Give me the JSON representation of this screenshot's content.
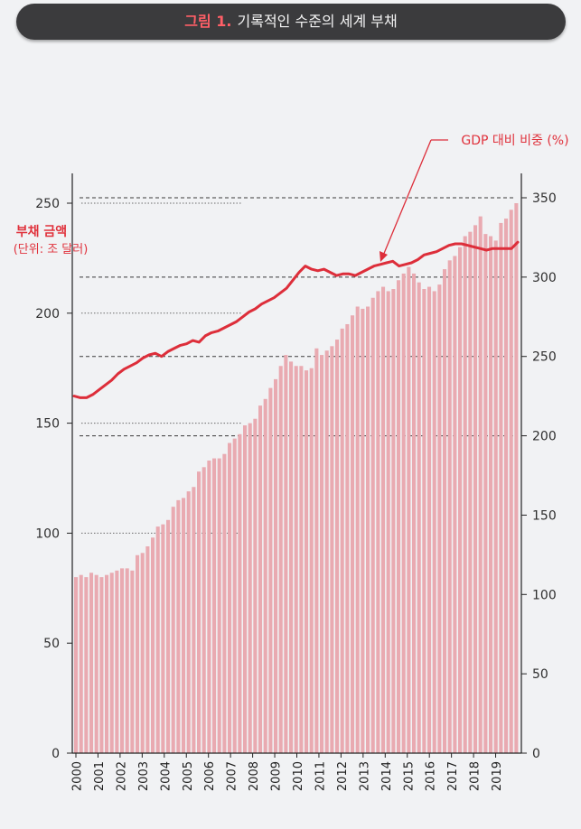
{
  "header": {
    "figure_number": "그림 1.",
    "title": "기록적인 수준의 세계 부채"
  },
  "chart_data": {
    "type": "bar",
    "title": "기록적인 수준의 세계 부채",
    "x_labels": [
      "2000",
      "2001",
      "2002",
      "2003",
      "2004",
      "2005",
      "2006",
      "2007",
      "2008",
      "2009",
      "2010",
      "2011",
      "2012",
      "2013",
      "2014",
      "2015",
      "2016",
      "2017",
      "2018",
      "2019"
    ],
    "left_axis": {
      "label": "부채 금액",
      "unit_label": "(단위: 조 달러)",
      "ticks": [
        0,
        50,
        100,
        150,
        200,
        250
      ],
      "range": [
        0,
        260
      ]
    },
    "right_axis": {
      "ticks": [
        0,
        50,
        100,
        150,
        200,
        250,
        300,
        350
      ],
      "range": [
        0,
        360
      ]
    },
    "series": [
      {
        "name": "부채 금액",
        "kind": "bar",
        "axis": "left",
        "color": "#e9aab1",
        "values": [
          80,
          81,
          80,
          82,
          81,
          80,
          81,
          82,
          83,
          84,
          84,
          83,
          90,
          91,
          94,
          98,
          103,
          104,
          106,
          112,
          115,
          116,
          119,
          121,
          128,
          130,
          133,
          134,
          134,
          136,
          141,
          143,
          145,
          149,
          150,
          152,
          158,
          161,
          166,
          170,
          176,
          181,
          178,
          176,
          176,
          174,
          175,
          184,
          181,
          183,
          185,
          188,
          193,
          195,
          199,
          203,
          202,
          203,
          207,
          210,
          212,
          210,
          211,
          215,
          218,
          221,
          218,
          214,
          211,
          212,
          210,
          213,
          220,
          224,
          226,
          230,
          235,
          237,
          240,
          244,
          236,
          235,
          233,
          241,
          243,
          247,
          250
        ]
      },
      {
        "name": "GDP 대비 비중 (%)",
        "kind": "line",
        "axis": "right",
        "color": "#dd2e3a",
        "values": [
          225,
          224,
          224,
          226,
          229,
          232,
          235,
          239,
          242,
          244,
          246,
          249,
          251,
          252,
          250,
          253,
          255,
          257,
          258,
          260,
          259,
          263,
          265,
          266,
          268,
          270,
          272,
          275,
          278,
          280,
          283,
          285,
          287,
          290,
          293,
          298,
          303,
          307,
          305,
          304,
          305,
          303,
          301,
          302,
          302,
          301,
          303,
          305,
          307,
          308,
          309,
          310,
          307,
          308,
          309,
          311,
          314,
          315,
          316,
          318,
          320,
          321,
          321,
          320,
          319,
          318,
          317,
          318,
          318,
          318,
          318,
          322
        ]
      }
    ],
    "grid": {
      "left_dotted_lines": [
        100,
        150,
        200,
        250
      ],
      "right_dashed_lines": [
        200,
        250,
        300,
        350
      ]
    },
    "annotation": {
      "text": "GDP 대비 비중 (%)",
      "arrow": true
    }
  }
}
